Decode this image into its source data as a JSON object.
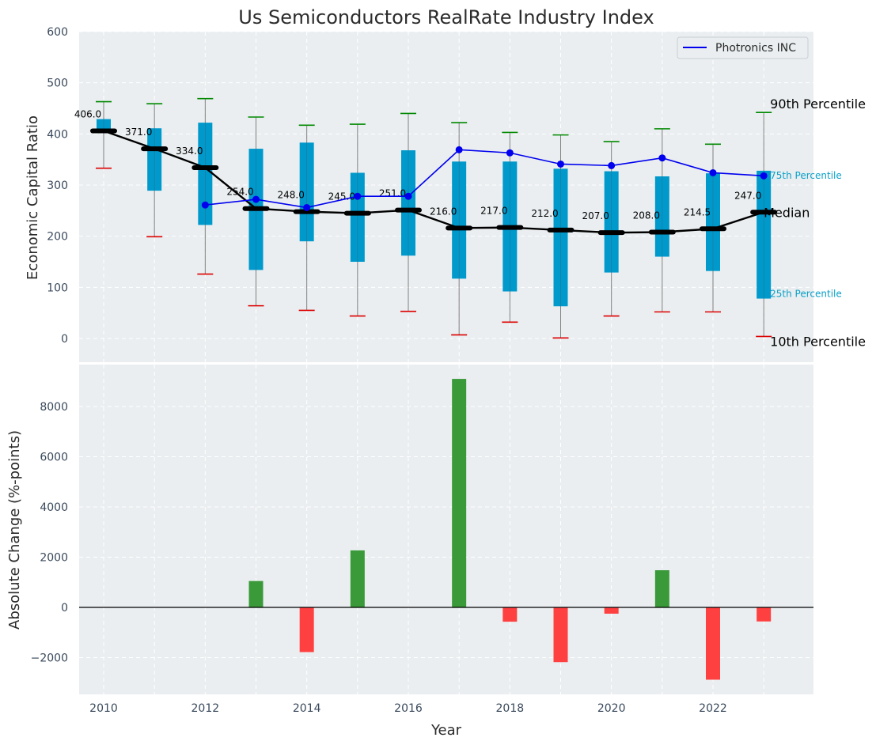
{
  "chart_data": [
    {
      "type": "box",
      "title": "Us Semiconductors RealRate Industry Index",
      "ylabel": "Economic Capital Ratio",
      "ylim": [
        -50,
        600
      ],
      "yticks": [
        0,
        100,
        200,
        300,
        400,
        500,
        600
      ],
      "years": [
        2010,
        2011,
        2012,
        2013,
        2014,
        2015,
        2016,
        2017,
        2018,
        2019,
        2020,
        2021,
        2022,
        2023
      ],
      "p10": [
        333,
        199,
        126,
        64,
        55,
        44,
        53,
        7,
        32,
        1,
        44,
        52,
        52,
        4
      ],
      "p25": [
        406,
        289,
        222,
        134,
        190,
        150,
        162,
        117,
        92,
        63,
        129,
        160,
        132,
        78
      ],
      "median": [
        406.0,
        371.0,
        334.0,
        254.0,
        248.0,
        245.0,
        251.0,
        216.0,
        217.0,
        212.0,
        207.0,
        208.0,
        214.5,
        247.0
      ],
      "median_labels": [
        "406.0",
        "371.0",
        "334.0",
        "254.0",
        "248.0",
        "245.0",
        "251.0",
        "216.0",
        "217.0",
        "212.0",
        "207.0",
        "208.0",
        "214.5",
        "247.0"
      ],
      "p75": [
        429,
        411,
        422,
        371,
        383,
        324,
        368,
        346,
        346,
        332,
        327,
        317,
        323,
        328
      ],
      "p90": [
        463,
        459,
        469,
        433,
        417,
        419,
        440,
        422,
        403,
        398,
        385,
        410,
        380,
        442
      ],
      "company": {
        "name": "Photronics INC",
        "years": [
          2012,
          2013,
          2014,
          2015,
          2016,
          2017,
          2018,
          2019,
          2020,
          2021,
          2022,
          2023
        ],
        "values": [
          261,
          272,
          256,
          278,
          278,
          369,
          363,
          341,
          338,
          353,
          324,
          318
        ]
      },
      "annotations": {
        "p90": "90th Percentile",
        "p75": "75th Percentile",
        "median": "Median",
        "p25": "25th Percentile",
        "p10": "10th Percentile"
      },
      "colors": {
        "box": "#0099cc",
        "median": "#000000",
        "company": "#0000ee",
        "whisker_top": "#008800",
        "whisker_bottom": "#dd0000"
      }
    },
    {
      "type": "bar",
      "xlabel": "Year",
      "ylabel": "Absolute Change (%-points)",
      "ylim": [
        -3500,
        9700
      ],
      "yticks": [
        -2000,
        0,
        2000,
        4000,
        6000,
        8000
      ],
      "ytick_labels": [
        "−2000",
        "0",
        "2000",
        "4000",
        "6000",
        "8000"
      ],
      "xticks": [
        2010,
        2012,
        2014,
        2016,
        2018,
        2020,
        2022
      ],
      "years": [
        2013,
        2014,
        2015,
        2017,
        2018,
        2019,
        2020,
        2021,
        2022,
        2023
      ],
      "values": [
        1050,
        -1780,
        2270,
        9100,
        -570,
        -2180,
        -250,
        1480,
        -2880,
        -560
      ],
      "colors": {
        "positive": "#3a9a3a",
        "negative": "#ff4040"
      }
    }
  ],
  "legend": {
    "label": "Photronics INC"
  }
}
